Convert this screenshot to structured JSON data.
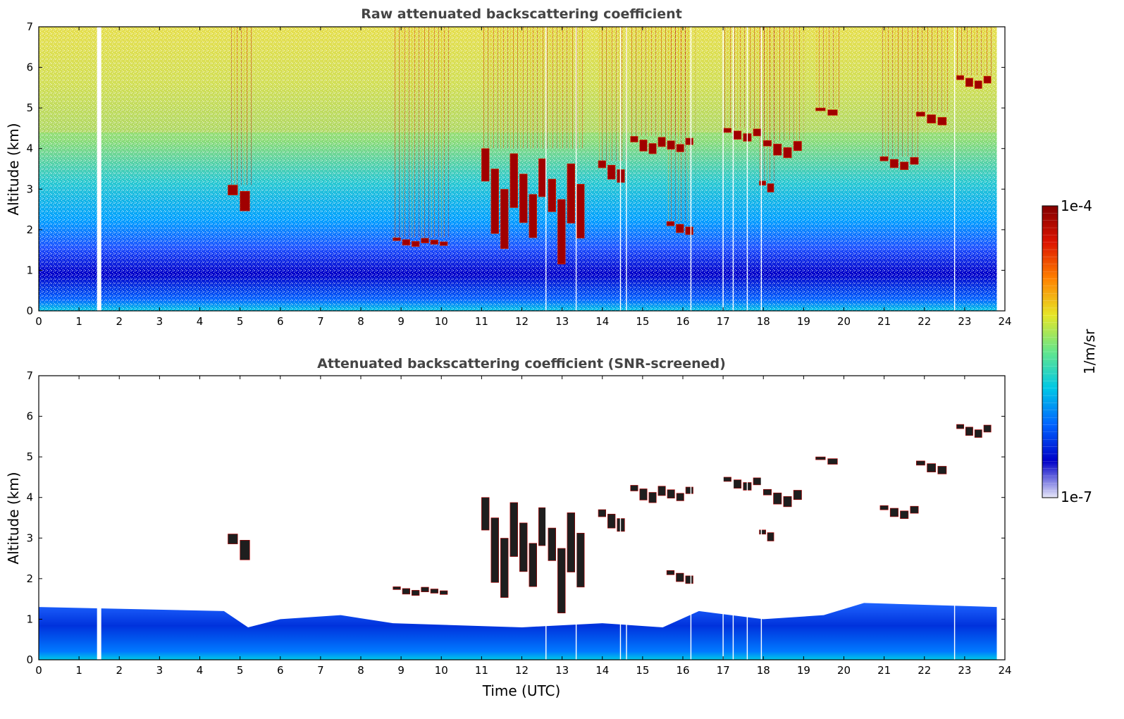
{
  "chart_data": [
    {
      "type": "heatmap",
      "title": "Raw attenuated backscattering coefficient",
      "xlabel": "",
      "ylabel": "Altitude (km)",
      "xlim": [
        0,
        24
      ],
      "ylim": [
        0,
        7
      ],
      "xticks": [
        0,
        1,
        2,
        3,
        4,
        5,
        6,
        7,
        8,
        9,
        10,
        11,
        12,
        13,
        14,
        15,
        16,
        17,
        18,
        19,
        20,
        21,
        22,
        23,
        24
      ],
      "yticks": [
        0,
        1,
        2,
        3,
        4,
        5,
        6,
        7
      ],
      "data_gaps_utc": [
        1.5,
        12.6,
        13.35,
        14.45,
        14.6,
        16.2,
        17.0,
        17.25,
        17.6,
        17.95,
        22.75
      ],
      "data_end_utc": 23.8,
      "cloud_layers": [
        {
          "x0": 4.7,
          "x1": 5.3,
          "y0": 2.4,
          "y1": 3.1
        },
        {
          "x0": 8.8,
          "x1": 10.2,
          "y0": 1.6,
          "y1": 1.8
        },
        {
          "x0": 11.0,
          "x1": 13.6,
          "y0": 1.7,
          "y1": 4.0
        },
        {
          "x0": 13.9,
          "x1": 14.6,
          "y0": 3.2,
          "y1": 3.7
        },
        {
          "x0": 14.7,
          "x1": 16.3,
          "y0": 3.9,
          "y1": 4.3
        },
        {
          "x0": 15.6,
          "x1": 16.3,
          "y0": 1.9,
          "y1": 2.2
        },
        {
          "x0": 17.0,
          "x1": 18.0,
          "y0": 4.2,
          "y1": 4.5
        },
        {
          "x0": 18.0,
          "x1": 19.0,
          "y0": 3.8,
          "y1": 4.2
        },
        {
          "x0": 17.9,
          "x1": 18.3,
          "y0": 2.9,
          "y1": 3.2
        },
        {
          "x0": 19.3,
          "x1": 19.9,
          "y0": 4.8,
          "y1": 5.0
        },
        {
          "x0": 20.9,
          "x1": 21.9,
          "y0": 3.5,
          "y1": 3.8
        },
        {
          "x0": 21.8,
          "x1": 22.6,
          "y0": 4.6,
          "y1": 4.9
        },
        {
          "x0": 22.8,
          "x1": 23.7,
          "y0": 5.5,
          "y1": 5.8
        }
      ]
    },
    {
      "type": "heatmap",
      "title": "Attenuated backscattering coefficient (SNR-screened)",
      "xlabel": "Time (UTC)",
      "ylabel": "Altitude (km)",
      "xlim": [
        0,
        24
      ],
      "ylim": [
        0,
        7
      ],
      "xticks": [
        0,
        1,
        2,
        3,
        4,
        5,
        6,
        7,
        8,
        9,
        10,
        11,
        12,
        13,
        14,
        15,
        16,
        17,
        18,
        19,
        20,
        21,
        22,
        23,
        24
      ],
      "yticks": [
        0,
        1,
        2,
        3,
        4,
        5,
        6,
        7
      ],
      "boundary_layer_top_km": [
        [
          0,
          1.3
        ],
        [
          4.6,
          1.2
        ],
        [
          5.2,
          0.8
        ],
        [
          6,
          1.0
        ],
        [
          7.5,
          1.1
        ],
        [
          8.8,
          0.9
        ],
        [
          12,
          0.8
        ],
        [
          14,
          0.9
        ],
        [
          15.5,
          0.8
        ],
        [
          16.4,
          1.2
        ],
        [
          18,
          1.0
        ],
        [
          19.5,
          1.1
        ],
        [
          20.5,
          1.4
        ],
        [
          23.8,
          1.3
        ]
      ]
    }
  ],
  "colorbar": {
    "label": "1/m/sr",
    "max_label": "1e-4",
    "min_label": "1e-7",
    "colors": [
      "#e8e8f8",
      "#0000c8",
      "#0064ff",
      "#00c8e6",
      "#64e68c",
      "#e6e628",
      "#ff8200",
      "#dc1400",
      "#820000"
    ]
  }
}
